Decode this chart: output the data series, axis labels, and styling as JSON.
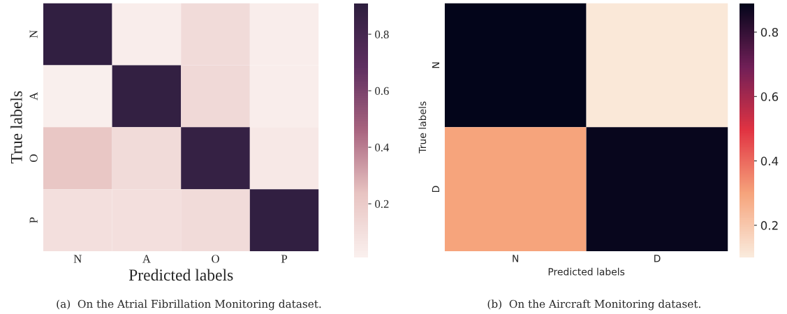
{
  "chart_data": [
    {
      "type": "heatmap",
      "categories": [
        "N",
        "A",
        "O",
        "P"
      ],
      "y_categories": [
        "N",
        "A",
        "O",
        "P"
      ],
      "xlabel": "Predicted labels",
      "ylabel": "True labels",
      "cells": [
        [
          0.89,
          0.03,
          0.12,
          0.03
        ],
        [
          0.02,
          0.88,
          0.13,
          0.03
        ],
        [
          0.22,
          0.12,
          0.87,
          0.05
        ],
        [
          0.1,
          0.1,
          0.12,
          0.89
        ]
      ],
      "clim": [
        0.01,
        0.91
      ],
      "cticks": [
        0.2,
        0.4,
        0.6,
        0.8
      ],
      "colors": [
        "#faf0ee",
        "#e8c4c2",
        "#a8647f",
        "#5e2f60",
        "#2d1e3e"
      ],
      "annotations": [
        "(a)  On the Atrial Fibrillation Monitoring dataset."
      ]
    },
    {
      "type": "heatmap",
      "categories": [
        "N",
        "D"
      ],
      "y_categories": [
        "N",
        "D"
      ],
      "xlabel": "Predicted labels",
      "ylabel": "True labels",
      "cells": [
        [
          0.89,
          0.11
        ],
        [
          0.3,
          0.88
        ]
      ],
      "clim": [
        0.1,
        0.89
      ],
      "cticks": [
        0.2,
        0.4,
        0.6,
        0.8
      ],
      "colors": [
        "#faebdd",
        "#f6a47c",
        "#e13342",
        "#701f57",
        "#03051a"
      ],
      "annotations": [
        "(b)  On the Aircraft Monitoring dataset."
      ]
    }
  ]
}
